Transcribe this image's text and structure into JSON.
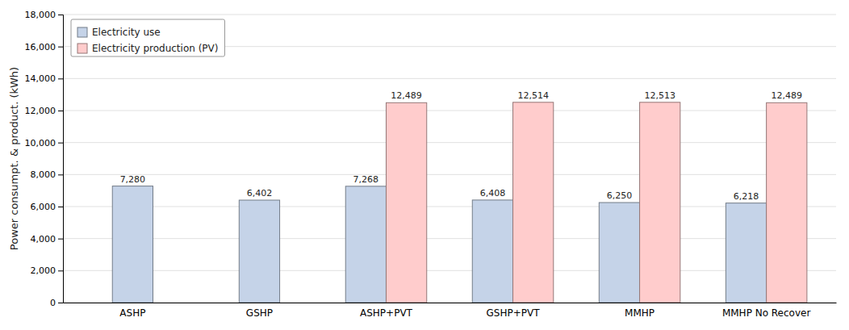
{
  "chart_data": {
    "type": "bar",
    "categories": [
      "ASHP",
      "GSHP",
      "ASHP+PVT",
      "GSHP+PVT",
      "MMHP",
      "MMHP No Recover"
    ],
    "series": [
      {
        "name": "Electricity use",
        "color": "#C5D3E8",
        "values": [
          7280,
          6402,
          7268,
          6408,
          6250,
          6218
        ],
        "value_labels": [
          "7,280",
          "6,402",
          "7,268",
          "6,408",
          "6,250",
          "6,218"
        ]
      },
      {
        "name": "Electricity production (PV)",
        "color": "#FFCCCC",
        "values": [
          null,
          null,
          12489,
          12514,
          12513,
          12489
        ],
        "value_labels": [
          null,
          null,
          "12,489",
          "12,514",
          "12,513",
          "12,489"
        ]
      }
    ],
    "y_label": "Power consumpt. & product. (kWh)",
    "ylim": [
      0,
      18000
    ],
    "yticks": [
      0,
      {
        "value": 2000,
        "label": "2,000"
      },
      {
        "value": 4000,
        "label": "4,000"
      },
      {
        "value": 6000,
        "label": "6,000"
      },
      {
        "value": 8000,
        "label": "8,000"
      },
      {
        "value": 10000,
        "label": "10,000"
      },
      {
        "value": 12000,
        "label": "12,000"
      },
      {
        "value": 14000,
        "label": "14,000"
      },
      {
        "value": 16000,
        "label": "16,000"
      },
      {
        "value": 18000,
        "label": "18,000"
      }
    ],
    "grid": true,
    "legend": "upper-left",
    "data_labels": true
  }
}
